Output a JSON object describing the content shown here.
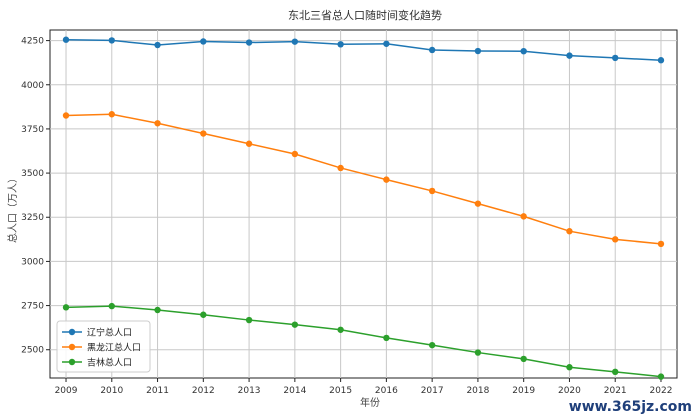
{
  "chart_data": {
    "type": "line",
    "title": "东北三省总人口随时间变化趋势",
    "xlabel": "年份",
    "ylabel": "总人口（万人）",
    "x": [
      2009,
      2010,
      2011,
      2012,
      2013,
      2014,
      2015,
      2016,
      2017,
      2018,
      2019,
      2020,
      2021,
      2022
    ],
    "x_ticks": [
      "2009",
      "2010",
      "2011",
      "2012",
      "2013",
      "2014",
      "2015",
      "2016",
      "2017",
      "2018",
      "2019",
      "2020",
      "2021",
      "2022"
    ],
    "y_ticks": [
      "2500",
      "2750",
      "3000",
      "3250",
      "3500",
      "3750",
      "4000",
      "4250"
    ],
    "xlim": [
      2008.65,
      2022.35
    ],
    "ylim": [
      2340,
      4310
    ],
    "grid": true,
    "legend_position": "lower-left",
    "series": [
      {
        "name": "辽宁总人口",
        "color": "#1f77b4",
        "values": [
          4255,
          4251,
          4225,
          4245,
          4239,
          4244,
          4229,
          4232,
          4197,
          4191,
          4190,
          4165,
          4152,
          4139
        ]
      },
      {
        "name": "黑龙江总人口",
        "color": "#ff7f0e",
        "values": [
          3826,
          3833,
          3782,
          3724,
          3666,
          3608,
          3529,
          3463,
          3399,
          3327,
          3255,
          3171,
          3125,
          3099
        ]
      },
      {
        "name": "吉林总人口",
        "color": "#2ca02c",
        "values": [
          2740,
          2747,
          2725,
          2698,
          2668,
          2642,
          2613,
          2567,
          2526,
          2484,
          2448,
          2401,
          2375,
          2348
        ]
      }
    ]
  },
  "watermark": {
    "text": "www.365jz.com"
  }
}
